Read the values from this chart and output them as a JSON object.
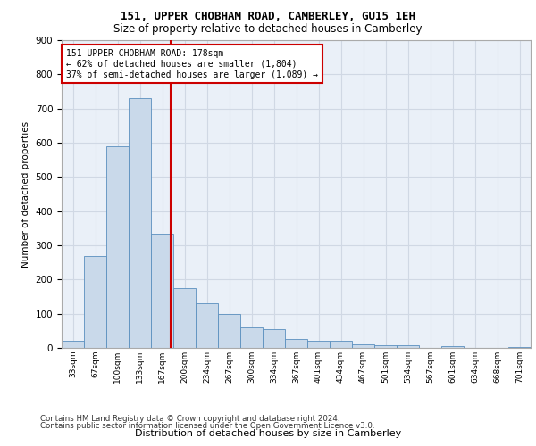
{
  "title1": "151, UPPER CHOBHAM ROAD, CAMBERLEY, GU15 1EH",
  "title2": "Size of property relative to detached houses in Camberley",
  "xlabel": "Distribution of detached houses by size in Camberley",
  "ylabel": "Number of detached properties",
  "bin_labels": [
    "33sqm",
    "67sqm",
    "100sqm",
    "133sqm",
    "167sqm",
    "200sqm",
    "234sqm",
    "267sqm",
    "300sqm",
    "334sqm",
    "367sqm",
    "401sqm",
    "434sqm",
    "467sqm",
    "501sqm",
    "534sqm",
    "567sqm",
    "601sqm",
    "634sqm",
    "668sqm",
    "701sqm"
  ],
  "bar_values": [
    20,
    270,
    590,
    730,
    335,
    175,
    130,
    100,
    60,
    55,
    25,
    20,
    20,
    10,
    8,
    8,
    0,
    5,
    0,
    0,
    3
  ],
  "bar_color": "#c9d9ea",
  "bar_edge_color": "#5a8fbe",
  "grid_color": "#d0d8e4",
  "background_color": "#eaf0f8",
  "vline_color": "#cc0000",
  "annotation_text": "151 UPPER CHOBHAM ROAD: 178sqm\n← 62% of detached houses are smaller (1,804)\n37% of semi-detached houses are larger (1,089) →",
  "annotation_box_color": "#ffffff",
  "annotation_box_edge": "#cc0000",
  "ylim": [
    0,
    900
  ],
  "footer1": "Contains HM Land Registry data © Crown copyright and database right 2024.",
  "footer2": "Contains public sector information licensed under the Open Government Licence v3.0."
}
